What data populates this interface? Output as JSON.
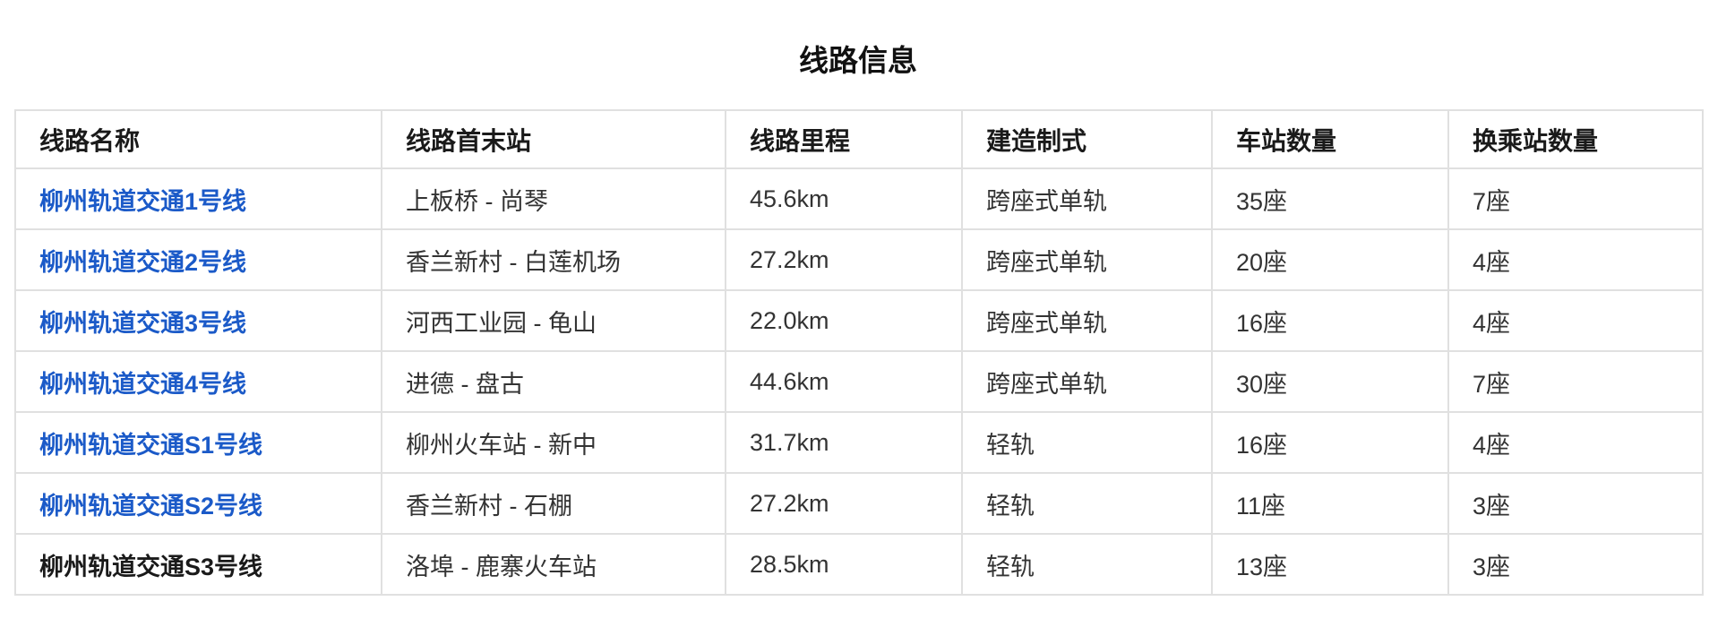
{
  "page": {
    "title": "线路信息"
  },
  "colors": {
    "link_blue": "#1b5ac8",
    "border_gray": "#e0e0e0",
    "body_text": "#333333",
    "header_text": "#1a1a1a"
  },
  "table": {
    "headers": [
      "线路名称",
      "线路首末站",
      "线路里程",
      "建造制式",
      "车站数量",
      "换乘站数量"
    ],
    "rows": [
      {
        "name": "柳州轨道交通1号线",
        "is_link": true,
        "termini": "上板桥 - 尚琴",
        "length": "45.6km",
        "system": "跨座式单轨",
        "stations": "35座",
        "transfers": "7座"
      },
      {
        "name": "柳州轨道交通2号线",
        "is_link": true,
        "termini": "香兰新村 - 白莲机场",
        "length": "27.2km",
        "system": "跨座式单轨",
        "stations": "20座",
        "transfers": "4座"
      },
      {
        "name": "柳州轨道交通3号线",
        "is_link": true,
        "termini": "河西工业园 - 龟山",
        "length": "22.0km",
        "system": "跨座式单轨",
        "stations": "16座",
        "transfers": "4座"
      },
      {
        "name": "柳州轨道交通4号线",
        "is_link": true,
        "termini": "进德 - 盘古",
        "length": "44.6km",
        "system": "跨座式单轨",
        "stations": "30座",
        "transfers": "7座"
      },
      {
        "name": "柳州轨道交通S1号线",
        "is_link": true,
        "termini": "柳州火车站 - 新中",
        "length": "31.7km",
        "system": "轻轨",
        "stations": "16座",
        "transfers": "4座"
      },
      {
        "name": "柳州轨道交通S2号线",
        "is_link": true,
        "termini": "香兰新村 - 石棚",
        "length": "27.2km",
        "system": "轻轨",
        "stations": "11座",
        "transfers": "3座"
      },
      {
        "name": "柳州轨道交通S3号线",
        "is_link": false,
        "termini": "洛埠 - 鹿寨火车站",
        "length": "28.5km",
        "system": "轻轨",
        "stations": "13座",
        "transfers": "3座"
      }
    ]
  }
}
